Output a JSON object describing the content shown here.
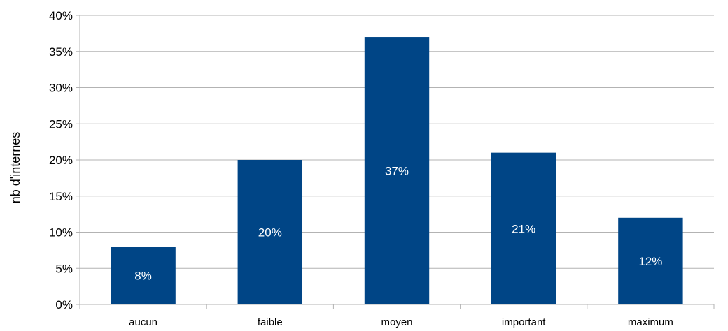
{
  "chart_data": {
    "type": "bar",
    "title": "",
    "xlabel": "",
    "ylabel": "nb d'internes",
    "categories": [
      "aucun",
      "faible",
      "moyen",
      "important",
      "maximum"
    ],
    "values": [
      8,
      20,
      37,
      21,
      12
    ],
    "data_labels": [
      "8%",
      "20%",
      "37%",
      "21%",
      "12%"
    ],
    "y_ticks": [
      "0%",
      "5%",
      "10%",
      "15%",
      "20%",
      "25%",
      "30%",
      "35%",
      "40%"
    ],
    "y_tick_values": [
      0,
      5,
      10,
      15,
      20,
      25,
      30,
      35,
      40
    ],
    "ylim": [
      0,
      40
    ],
    "grid": true,
    "legend": "none",
    "colors": {
      "bar": "#004586",
      "grid": "#b3b3b3",
      "data_label": "#ffffff"
    }
  }
}
